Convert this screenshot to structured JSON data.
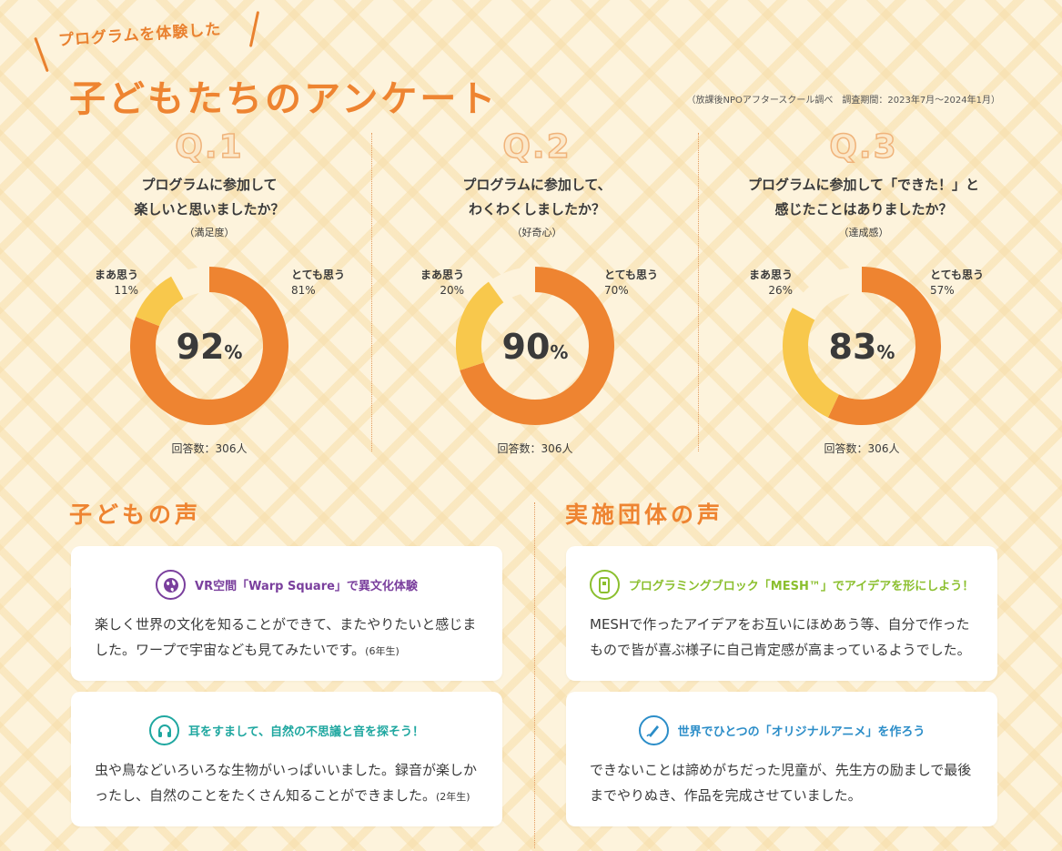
{
  "header": {
    "subtitle": "プログラムを体験した",
    "title": "子どもたちのアンケート",
    "source": "（放課後NPOアフタースクール調べ　調査期間：2023年7月〜2024年1月）"
  },
  "colors": {
    "accent": "#ee8431",
    "donut_primary": "#ee8431",
    "donut_secondary": "#f8c84c",
    "purple": "#7a3f9d",
    "teal": "#1fa7a0",
    "green": "#8bbf2e",
    "blue": "#2b8dc8"
  },
  "chart_data": [
    {
      "type": "pie",
      "label": "Q.1",
      "question": "プログラムに参加して\n楽しいと思いましたか？",
      "category": "（満足度）",
      "total": "92",
      "unit": "%",
      "respondents": "回答数：306人",
      "slices": [
        {
          "name": "とても思う",
          "value": 81
        },
        {
          "name": "まあ思う",
          "value": 11
        }
      ]
    },
    {
      "type": "pie",
      "label": "Q.2",
      "question": "プログラムに参加して、\nわくわくしましたか？",
      "category": "（好奇心）",
      "total": "90",
      "unit": "%",
      "respondents": "回答数：306人",
      "slices": [
        {
          "name": "とても思う",
          "value": 70
        },
        {
          "name": "まあ思う",
          "value": 20
        }
      ]
    },
    {
      "type": "pie",
      "label": "Q.3",
      "question": "プログラムに参加して「できた！」と\n感じたことはありましたか？",
      "category": "（達成感）",
      "total": "83",
      "unit": "%",
      "respondents": "回答数：306人",
      "slices": [
        {
          "name": "とても思う",
          "value": 57
        },
        {
          "name": "まあ思う",
          "value": 26
        }
      ]
    }
  ],
  "voices": {
    "children_title": "子どもの声",
    "org_title": "実施団体の声",
    "cards": [
      {
        "icon": "globe-icon",
        "color": "#7a3f9d",
        "heading": "VR空間「Warp Square」で異文化体験",
        "body": "楽しく世界の文化を知ることができて、またやりたいと感じました。ワープで宇宙なども見てみたいです。",
        "note": "(6年生)"
      },
      {
        "icon": "headphones-icon",
        "color": "#1fa7a0",
        "heading": "耳をすまして、自然の不思議と音を探そう！",
        "body": "虫や鳥などいろいろな生物がいっぱいいました。録音が楽しかったし、自然のことをたくさん知ることができました。",
        "note": "(2年生)"
      },
      {
        "icon": "mesh-block-icon",
        "color": "#8bbf2e",
        "heading": "プログラミングブロック「MESH™」でアイデアを形にしよう！",
        "body": "MESHで作ったアイデアをお互いにほめあう等、自分で作ったもので皆が喜ぶ様子に自己肯定感が高まっているようでした。",
        "note": ""
      },
      {
        "icon": "pen-tablet-icon",
        "color": "#2b8dc8",
        "heading": "世界でひとつの「オリジナルアニメ」を作ろう",
        "body": "できないことは諦めがちだった児童が、先生方の励ましで最後までやりぬき、作品を完成させていました。",
        "note": ""
      }
    ]
  }
}
